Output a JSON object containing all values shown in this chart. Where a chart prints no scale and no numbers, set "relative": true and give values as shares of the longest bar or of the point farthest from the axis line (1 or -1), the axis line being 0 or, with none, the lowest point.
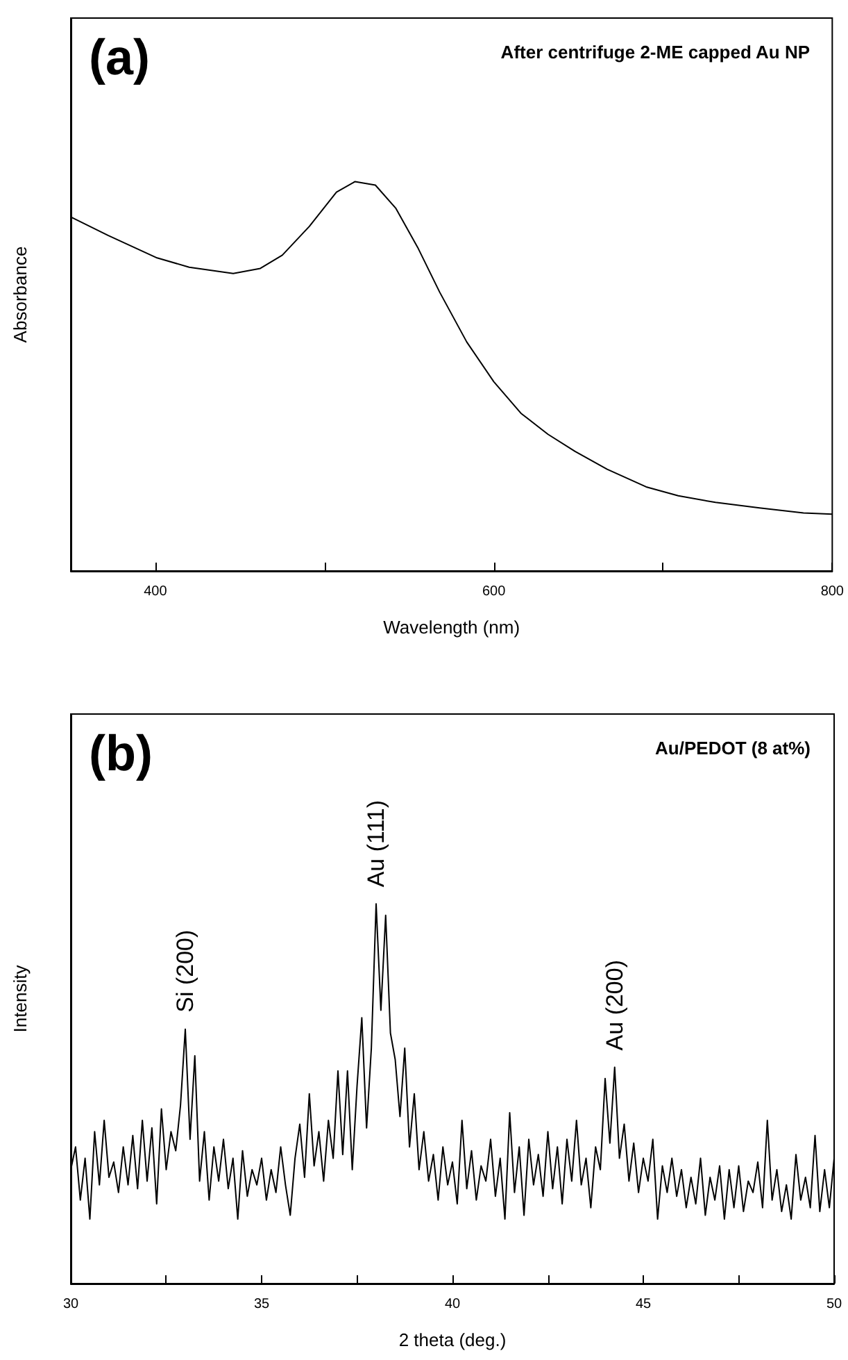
{
  "chart_data": [
    {
      "type": "line",
      "title": "After centrifuge 2-ME capped Au NP",
      "xlabel": "Wavelength (nm)",
      "ylabel": "Absorbance",
      "relative": true,
      "marker": "none",
      "annotations": [
        "(a)"
      ],
      "xlim": [
        350,
        800
      ],
      "xticks": [
        400,
        {
          "value": 500,
          "label": null
        },
        600,
        {
          "value": 700,
          "label": null
        },
        800
      ],
      "x": [
        350,
        372,
        401,
        420,
        446,
        462,
        475,
        491,
        507,
        518,
        530,
        542,
        555,
        568,
        584,
        600,
        616,
        632,
        648,
        667,
        690,
        709,
        731,
        757,
        783,
        800
      ],
      "series": [
        {
          "color": "#000000",
          "values": [
            0.909,
            0.862,
            0.804,
            0.78,
            0.764,
            0.777,
            0.811,
            0.885,
            0.973,
            1.0,
            0.991,
            0.932,
            0.831,
            0.716,
            0.588,
            0.486,
            0.405,
            0.351,
            0.307,
            0.261,
            0.216,
            0.193,
            0.176,
            0.162,
            0.149,
            0.146
          ]
        }
      ]
    },
    {
      "type": "line",
      "title": "Au/PEDOT (8 at%)",
      "xlabel": "2 theta (deg.)",
      "ylabel": "Intensity",
      "relative": true,
      "marker": "none",
      "annotations": [
        "(b)",
        {
          "text": "Si (200)",
          "x": 33,
          "y": 0.67
        },
        {
          "text": "Au (111)",
          "x": 38,
          "y": 1.0
        },
        {
          "text": "Au (200)",
          "x": 44.25,
          "y": 0.57
        }
      ],
      "xlim": [
        30,
        50
      ],
      "xticks": [
        30,
        {
          "value": 32.5,
          "label": null
        },
        35,
        {
          "value": 37.5,
          "label": null
        },
        40,
        {
          "value": 42.5,
          "label": null
        },
        45,
        {
          "value": 47.5,
          "label": null
        },
        50
      ],
      "x": [
        30,
        30.125,
        30.25,
        30.375,
        30.5,
        30.625,
        30.75,
        30.875,
        31,
        31.125,
        31.25,
        31.375,
        31.5,
        31.625,
        31.75,
        31.875,
        32,
        32.125,
        32.25,
        32.375,
        32.5,
        32.625,
        32.75,
        32.875,
        33,
        33.125,
        33.25,
        33.375,
        33.5,
        33.625,
        33.75,
        33.875,
        34,
        34.125,
        34.25,
        34.375,
        34.5,
        34.625,
        34.75,
        34.875,
        35,
        35.125,
        35.25,
        35.375,
        35.5,
        35.625,
        35.75,
        35.875,
        36,
        36.125,
        36.25,
        36.375,
        36.5,
        36.625,
        36.75,
        36.875,
        37,
        37.125,
        37.25,
        37.375,
        37.5,
        37.625,
        37.75,
        37.875,
        38,
        38.125,
        38.25,
        38.375,
        38.5,
        38.625,
        38.75,
        38.875,
        39,
        39.125,
        39.25,
        39.375,
        39.5,
        39.625,
        39.75,
        39.875,
        40,
        40.125,
        40.25,
        40.375,
        40.5,
        40.625,
        40.75,
        40.875,
        41,
        41.125,
        41.25,
        41.375,
        41.5,
        41.625,
        41.75,
        41.875,
        42,
        42.125,
        42.25,
        42.375,
        42.5,
        42.625,
        42.75,
        42.875,
        43,
        43.125,
        43.25,
        43.375,
        43.5,
        43.625,
        43.75,
        43.875,
        44,
        44.125,
        44.25,
        44.375,
        44.5,
        44.625,
        44.75,
        44.875,
        45,
        45.125,
        45.25,
        45.375,
        45.5,
        45.625,
        45.75,
        45.875,
        46,
        46.125,
        46.25,
        46.375,
        46.5,
        46.625,
        46.75,
        46.875,
        47,
        47.125,
        47.25,
        47.375,
        47.5,
        47.625,
        47.75,
        47.875,
        48,
        48.125,
        48.25,
        48.375,
        48.5,
        48.625,
        48.75,
        48.875,
        49,
        49.125,
        49.25,
        49.375,
        49.5,
        49.625,
        49.75,
        49.875,
        50
      ],
      "series": [
        {
          "color": "#000000",
          "values": [
            0.3,
            0.36,
            0.22,
            0.33,
            0.17,
            0.4,
            0.26,
            0.43,
            0.28,
            0.32,
            0.24,
            0.36,
            0.26,
            0.39,
            0.25,
            0.43,
            0.27,
            0.41,
            0.21,
            0.46,
            0.3,
            0.4,
            0.35,
            0.47,
            0.67,
            0.38,
            0.6,
            0.27,
            0.4,
            0.22,
            0.36,
            0.27,
            0.38,
            0.25,
            0.33,
            0.17,
            0.35,
            0.23,
            0.3,
            0.26,
            0.33,
            0.22,
            0.3,
            0.24,
            0.36,
            0.26,
            0.18,
            0.33,
            0.42,
            0.28,
            0.5,
            0.31,
            0.4,
            0.27,
            0.43,
            0.33,
            0.56,
            0.34,
            0.56,
            0.3,
            0.52,
            0.7,
            0.41,
            0.62,
            1.0,
            0.72,
            0.97,
            0.66,
            0.59,
            0.44,
            0.62,
            0.36,
            0.5,
            0.3,
            0.4,
            0.27,
            0.34,
            0.22,
            0.36,
            0.26,
            0.32,
            0.21,
            0.43,
            0.25,
            0.35,
            0.22,
            0.31,
            0.27,
            0.38,
            0.23,
            0.33,
            0.17,
            0.45,
            0.24,
            0.36,
            0.18,
            0.38,
            0.26,
            0.34,
            0.23,
            0.4,
            0.25,
            0.36,
            0.21,
            0.38,
            0.27,
            0.43,
            0.26,
            0.33,
            0.2,
            0.36,
            0.3,
            0.54,
            0.37,
            0.57,
            0.33,
            0.42,
            0.27,
            0.37,
            0.24,
            0.33,
            0.27,
            0.38,
            0.17,
            0.31,
            0.24,
            0.33,
            0.23,
            0.3,
            0.2,
            0.28,
            0.21,
            0.33,
            0.18,
            0.28,
            0.22,
            0.31,
            0.17,
            0.3,
            0.2,
            0.31,
            0.19,
            0.27,
            0.24,
            0.32,
            0.2,
            0.43,
            0.22,
            0.3,
            0.19,
            0.26,
            0.17,
            0.34,
            0.22,
            0.28,
            0.2,
            0.39,
            0.19,
            0.3,
            0.2,
            0.33
          ]
        }
      ]
    }
  ]
}
